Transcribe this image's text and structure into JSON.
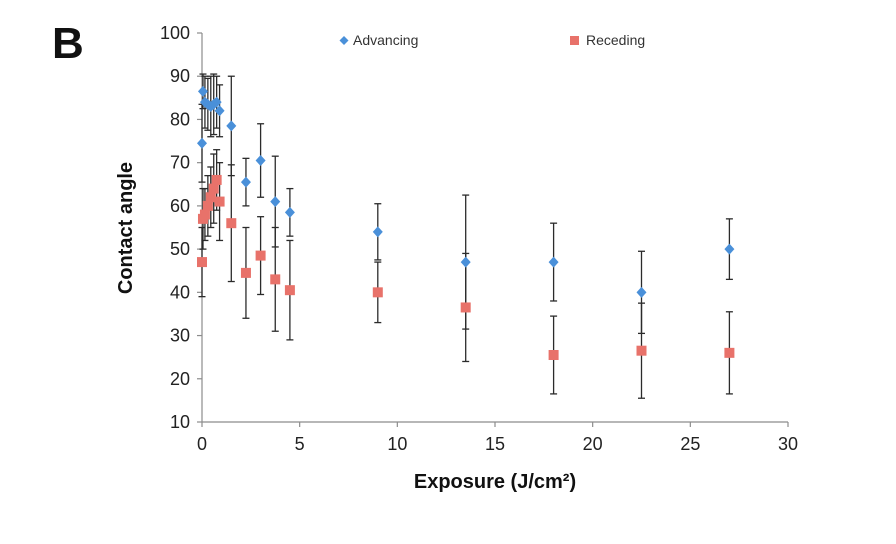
{
  "panel_label": "B",
  "chart_data": {
    "type": "scatter",
    "title": "",
    "xlabel": "Exposure (J/cm²)",
    "ylabel": "Contact angle",
    "xlim": [
      0,
      30
    ],
    "ylim": [
      10,
      100
    ],
    "xticks": [
      0,
      5,
      10,
      15,
      20,
      25,
      30
    ],
    "yticks": [
      10,
      20,
      30,
      40,
      50,
      60,
      70,
      80,
      90,
      100
    ],
    "grid": false,
    "legend": "top",
    "series": [
      {
        "name": "Advancing",
        "color": "#4a90d9",
        "marker": "diamond",
        "points": [
          {
            "x": 0.0,
            "y": 74.5,
            "err": 9
          },
          {
            "x": 0.05,
            "y": 86.5,
            "err": 4
          },
          {
            "x": 0.15,
            "y": 84.0,
            "err": 6
          },
          {
            "x": 0.3,
            "y": 83.5,
            "err": 6
          },
          {
            "x": 0.45,
            "y": 83.0,
            "err": 7
          },
          {
            "x": 0.6,
            "y": 83.5,
            "err": 7
          },
          {
            "x": 0.75,
            "y": 84.0,
            "err": 6
          },
          {
            "x": 0.9,
            "y": 82.0,
            "err": 6
          },
          {
            "x": 1.5,
            "y": 78.5,
            "err": 11.5
          },
          {
            "x": 2.25,
            "y": 65.5,
            "err": 5.5
          },
          {
            "x": 3.0,
            "y": 70.5,
            "err": 8.5
          },
          {
            "x": 3.75,
            "y": 61.0,
            "err": 10.5
          },
          {
            "x": 4.5,
            "y": 58.5,
            "err": 5.5
          },
          {
            "x": 9.0,
            "y": 54.0,
            "err": 6.5
          },
          {
            "x": 13.5,
            "y": 47.0,
            "err": 15.5
          },
          {
            "x": 18.0,
            "y": 47.0,
            "err": 9
          },
          {
            "x": 22.5,
            "y": 40.0,
            "err": 9.5
          },
          {
            "x": 27.0,
            "y": 50.0,
            "err": 7
          }
        ]
      },
      {
        "name": "Receding",
        "color": "#e8726a",
        "marker": "square",
        "points": [
          {
            "x": 0.0,
            "y": 47.0,
            "err": 8
          },
          {
            "x": 0.05,
            "y": 57.0,
            "err": 7
          },
          {
            "x": 0.15,
            "y": 58.0,
            "err": 6
          },
          {
            "x": 0.3,
            "y": 60.0,
            "err": 7
          },
          {
            "x": 0.45,
            "y": 62.0,
            "err": 7
          },
          {
            "x": 0.6,
            "y": 64.0,
            "err": 8
          },
          {
            "x": 0.75,
            "y": 66.0,
            "err": 7
          },
          {
            "x": 0.9,
            "y": 61.0,
            "err": 9
          },
          {
            "x": 1.5,
            "y": 56.0,
            "err": 13.5
          },
          {
            "x": 2.25,
            "y": 44.5,
            "err": 10.5
          },
          {
            "x": 3.0,
            "y": 48.5,
            "err": 9
          },
          {
            "x": 3.75,
            "y": 43.0,
            "err": 12
          },
          {
            "x": 4.5,
            "y": 40.5,
            "err": 11.5
          },
          {
            "x": 9.0,
            "y": 40.0,
            "err": 7
          },
          {
            "x": 13.5,
            "y": 36.5,
            "err": 12.5
          },
          {
            "x": 18.0,
            "y": 25.5,
            "err": 9
          },
          {
            "x": 22.5,
            "y": 26.5,
            "err": 11
          },
          {
            "x": 27.0,
            "y": 26.0,
            "err": 9.5
          }
        ]
      }
    ]
  }
}
